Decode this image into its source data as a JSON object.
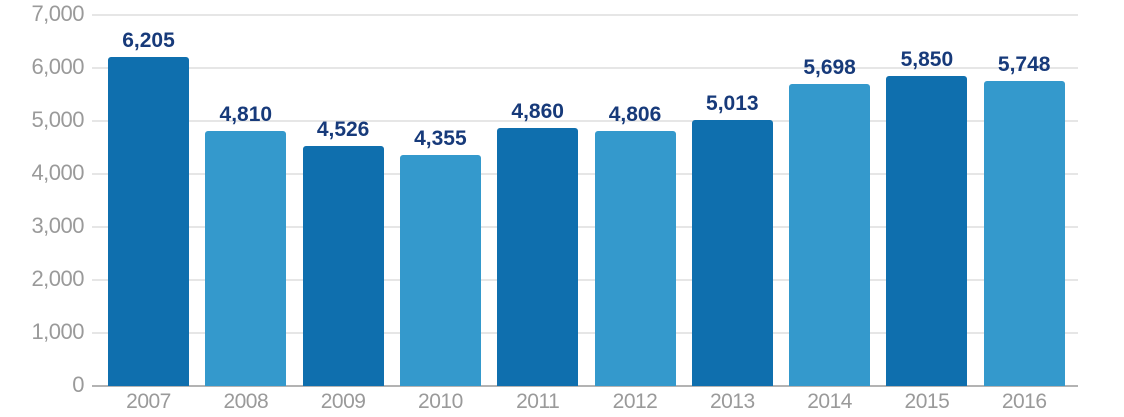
{
  "chart_data": {
    "type": "bar",
    "title": "",
    "xlabel": "",
    "ylabel": "",
    "categories": [
      "2007",
      "2008",
      "2009",
      "2010",
      "2011",
      "2012",
      "2013",
      "2014",
      "2015",
      "2016"
    ],
    "values": [
      6205,
      4810,
      4526,
      4355,
      4860,
      4806,
      5013,
      5698,
      5850,
      5748
    ],
    "value_labels": [
      "6,205",
      "4,810",
      "4,526",
      "4,355",
      "4,860",
      "4,806",
      "5,013",
      "5,698",
      "5,850",
      "5,748"
    ],
    "ylim": [
      0,
      7000
    ],
    "yticks": [
      0,
      1000,
      2000,
      3000,
      4000,
      5000,
      6000,
      7000
    ],
    "ytick_labels": [
      "0",
      "1,000",
      "2,000",
      "3,000",
      "4,000",
      "5,000",
      "6,000",
      "7,000"
    ],
    "grid": true,
    "legend": null,
    "colors": {
      "bar_dark": "#0f6fae",
      "bar_light": "#3499cc",
      "value_label": "#173a7a",
      "tick_label": "#9a9a9a",
      "grid": "#e6e6e6",
      "axis": "#b3b3b3"
    }
  }
}
